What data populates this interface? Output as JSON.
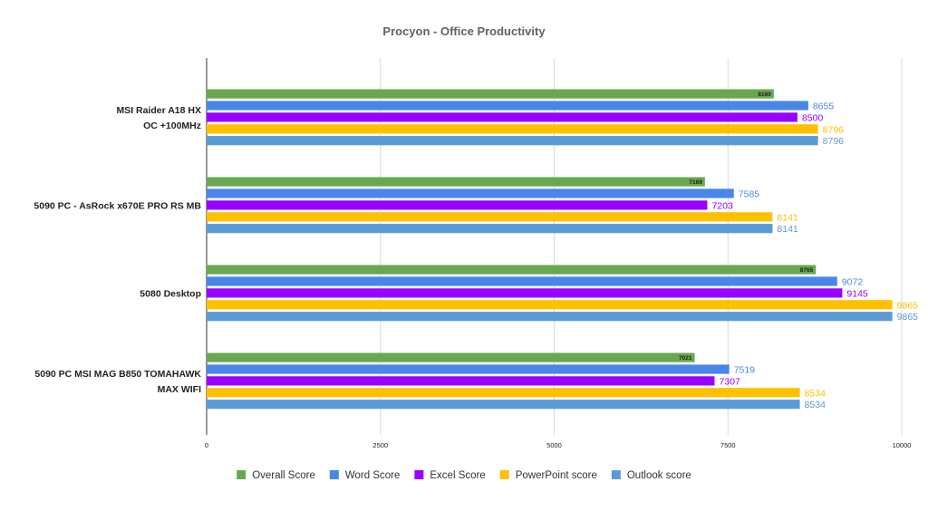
{
  "chart_data": {
    "type": "bar",
    "orientation": "horizontal",
    "title": "Procyon - Office Productivity",
    "xlabel": "",
    "ylabel": "",
    "xlim": [
      0,
      10000
    ],
    "x_ticks": [
      0,
      2500,
      5000,
      7500,
      10000
    ],
    "x_tick_labels": [
      "0",
      "2500",
      "5000",
      "7500",
      "10000"
    ],
    "grid": "vertical",
    "legend_position": "bottom",
    "categories": [
      [
        "MSI Raider A18 HX",
        "OC +100MHz"
      ],
      [
        "5090 PC - AsRock x670E PRO RS MB"
      ],
      [
        "5080 Desktop"
      ],
      [
        "5090 PC MSI MAG B850 TOMAHAWK",
        "MAX WIFI"
      ]
    ],
    "series": [
      {
        "name": "Overall Score",
        "color": "#6aa84f",
        "label_color": "#1b1b1b",
        "label_inside": true,
        "values": [
          8160,
          7169,
          8765,
          7021
        ]
      },
      {
        "name": "Word Score",
        "color": "#4a86e8",
        "label_color": "#4a86e8",
        "label_inside": false,
        "values": [
          8655,
          7585,
          9072,
          7519
        ]
      },
      {
        "name": "Excel Score",
        "color": "#9900ff",
        "label_color": "#9900ff",
        "label_inside": false,
        "values": [
          8500,
          7203,
          9145,
          7307
        ]
      },
      {
        "name": "PowerPoint score",
        "color": "#ffc000",
        "label_color": "#ffc000",
        "label_inside": false,
        "values": [
          8796,
          8141,
          9865,
          8534
        ]
      },
      {
        "name": "Outlook score",
        "color": "#5b9bd5",
        "label_color": "#5b9bd5",
        "label_inside": false,
        "values": [
          8796,
          8141,
          9865,
          8534
        ]
      }
    ]
  }
}
